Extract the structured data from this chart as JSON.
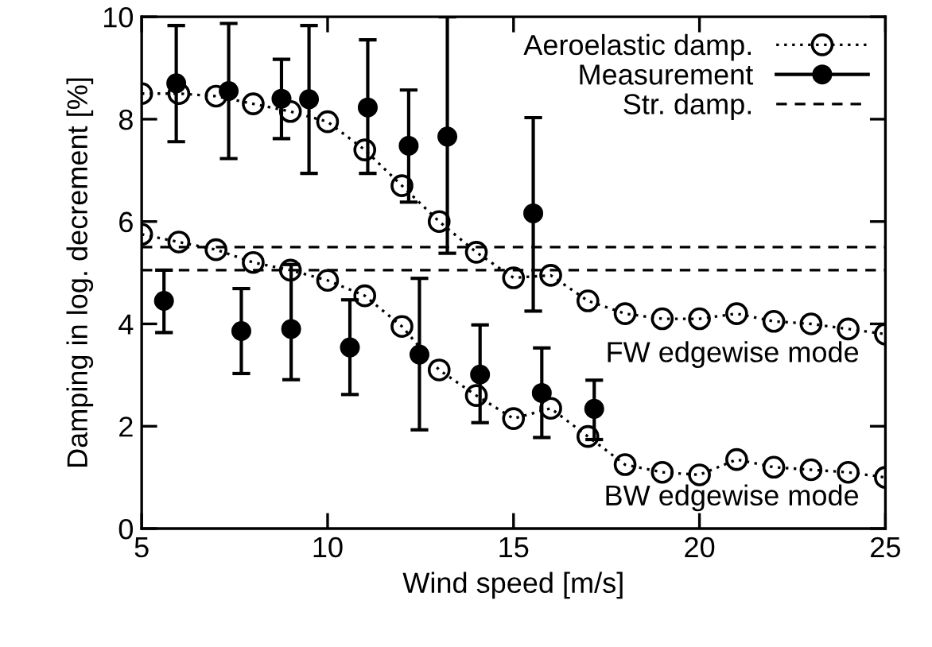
{
  "chart_data": {
    "type": "line",
    "xlabel": "Wind speed [m/s]",
    "ylabel": "Damping in log. decrement [%]",
    "xlim": [
      5,
      25
    ],
    "xticks": [
      5,
      10,
      15,
      20,
      25
    ],
    "ylim": [
      0,
      10
    ],
    "yticks": [
      0,
      2,
      4,
      6,
      8,
      10
    ],
    "grid": false,
    "legend": "top right",
    "series": [
      {
        "name": "Aeroelastic damp.",
        "color": "#000000",
        "marker": "circle",
        "line_style": "dotted",
        "x": [
          5,
          6,
          7,
          8,
          9,
          10,
          11,
          12,
          13,
          14,
          15,
          16,
          17,
          18,
          19,
          20,
          21,
          22,
          23,
          24,
          25
        ],
        "values": [
          8.5,
          8.5,
          8.45,
          8.3,
          8.15,
          7.95,
          7.4,
          6.7,
          6.0,
          5.4,
          4.9,
          4.95,
          4.45,
          4.2,
          4.1,
          4.1,
          4.2,
          4.05,
          4.0,
          3.9,
          3.8
        ]
      },
      {
        "color": "#000000",
        "marker": "circle",
        "line_style": "dotted",
        "x": [
          5,
          6,
          7,
          8,
          9,
          10,
          11,
          12,
          13,
          14,
          15,
          16,
          17,
          18,
          19,
          20,
          21,
          22,
          23,
          24,
          25
        ],
        "values": [
          5.75,
          5.6,
          5.45,
          5.2,
          5.05,
          4.85,
          4.55,
          3.95,
          3.1,
          2.6,
          2.15,
          2.35,
          1.8,
          1.25,
          1.1,
          1.05,
          1.35,
          1.2,
          1.15,
          1.1,
          1.0
        ]
      },
      {
        "name": "Measurement",
        "type": "scatter",
        "color": "#000000",
        "marker": "circle",
        "x": [
          5.93,
          7.34,
          8.76,
          9.5,
          11.08,
          12.18,
          13.22,
          15.53,
          5.6,
          7.68,
          9.02,
          10.6,
          12.47,
          14.1,
          15.76,
          17.17
        ],
        "values": [
          8.7,
          8.55,
          8.4,
          8.39,
          8.23,
          7.48,
          7.66,
          6.16,
          4.45,
          3.86,
          3.9,
          3.54,
          3.4,
          3.01,
          2.65,
          2.34
        ],
        "errors": [
          [
            7.56,
            9.83
          ],
          [
            7.23,
            9.87
          ],
          [
            7.62,
            9.17
          ],
          [
            6.94,
            9.83
          ],
          [
            6.94,
            9.55
          ],
          [
            6.38,
            8.57
          ],
          [
            5.38,
            10
          ],
          [
            4.25,
            8.03
          ],
          [
            3.83,
            5.05
          ],
          [
            3.03,
            4.69
          ],
          [
            2.91,
            5.16
          ],
          [
            2.62,
            4.47
          ],
          [
            1.93,
            4.89
          ],
          [
            2.07,
            3.98
          ],
          [
            1.78,
            3.53
          ],
          [
            1.74,
            2.9
          ]
        ]
      }
    ],
    "ref_lines": [
      {
        "axis": "y",
        "value": 5.5,
        "label": "Str. damp.",
        "color": "#000000",
        "line_style": "dashed"
      },
      {
        "axis": "y",
        "value": 5.05,
        "color": "#000000",
        "line_style": "dashed"
      }
    ],
    "annotations": [
      "FW edgewise mode",
      "BW edgewise mode"
    ]
  }
}
